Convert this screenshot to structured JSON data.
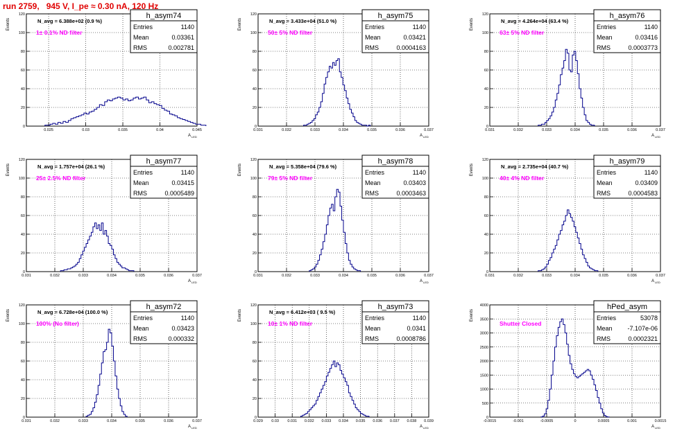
{
  "run_title": "run 2759,   945 V, I_pe ≈ 0.30 nA, 120 Hz",
  "colors": {
    "title": "#e00000",
    "hist": "#00008b",
    "annot": "#ff00ff",
    "axis": "#000000"
  },
  "common": {
    "ylabel": "Events",
    "xlabel": "A",
    "xlabel_sub": "LED",
    "stat_labels": [
      "Entries",
      "Mean",
      "RMS"
    ]
  },
  "chart_data": [
    {
      "type": "histogram",
      "name": "h_asym74",
      "navg": "N_avg = 6.388e+02 (0.9 %)",
      "annot": "1± 0.1% ND filter",
      "stats": {
        "entries": "1140",
        "mean": "0.03361",
        "rms": "0.002781"
      },
      "xlim": [
        0.022,
        0.045
      ],
      "xticks": [
        "0.025",
        "0.03",
        "0.035",
        "0.04",
        "0.045"
      ],
      "xtickv": [
        0.025,
        0.03,
        0.035,
        0.04,
        0.045
      ],
      "ylim": [
        0,
        120
      ],
      "yticks": [
        "0",
        "20",
        "40",
        "60",
        "80",
        "100",
        "120"
      ],
      "ytickv": [
        0,
        20,
        40,
        60,
        80,
        100,
        120
      ],
      "bin_start": 0.0245,
      "bin_width": 0.00035,
      "values": [
        1,
        1,
        2,
        3,
        2,
        4,
        3,
        5,
        4,
        6,
        8,
        9,
        10,
        11,
        12,
        14,
        13,
        15,
        16,
        18,
        20,
        23,
        22,
        26,
        28,
        27,
        29,
        30,
        31,
        30,
        28,
        29,
        27,
        28,
        30,
        31,
        29,
        30,
        31,
        28,
        25,
        26,
        24,
        23,
        22,
        19,
        17,
        16,
        13,
        12,
        11,
        9,
        8,
        7,
        6,
        5,
        4,
        3,
        2,
        2,
        1,
        1
      ]
    },
    {
      "type": "histogram",
      "name": "h_asym75",
      "navg": "N_avg = 3.433e+04 (51.0 %)",
      "annot": "50± 5% ND filter",
      "stats": {
        "entries": "1140",
        "mean": "0.03421",
        "rms": "0.0004163"
      },
      "xlim": [
        0.031,
        0.037
      ],
      "xticks": [
        "0.031",
        "0.032",
        "0.033",
        "0.034",
        "0.035",
        "0.036",
        "0.037"
      ],
      "xtickv": [
        0.031,
        0.032,
        0.033,
        0.034,
        0.035,
        0.036,
        0.037
      ],
      "ylim": [
        0,
        120
      ],
      "yticks": [
        "0",
        "20",
        "40",
        "60",
        "80",
        "100",
        "120"
      ],
      "ytickv": [
        0,
        20,
        40,
        60,
        80,
        100,
        120
      ],
      "bin_start": 0.0326,
      "bin_width": 6e-05,
      "values": [
        1,
        1,
        2,
        3,
        4,
        6,
        8,
        12,
        15,
        20,
        26,
        35,
        45,
        52,
        58,
        64,
        62,
        68,
        65,
        70,
        72,
        58,
        52,
        44,
        38,
        30,
        24,
        18,
        14,
        10,
        6,
        4,
        3,
        2,
        1,
        1,
        1,
        0,
        1
      ]
    },
    {
      "type": "histogram",
      "name": "h_asym76",
      "navg": "N_avg = 4.264e+04 (63.4 %)",
      "annot": "63± 5% ND filter",
      "stats": {
        "entries": "1140",
        "mean": "0.03416",
        "rms": "0.0003773"
      },
      "xlim": [
        0.031,
        0.037
      ],
      "xticks": [
        "0.031",
        "0.032",
        "0.033",
        "0.034",
        "0.035",
        "0.036",
        "0.037"
      ],
      "xtickv": [
        0.031,
        0.032,
        0.033,
        0.034,
        0.035,
        0.036,
        0.037
      ],
      "ylim": [
        0,
        120
      ],
      "yticks": [
        "0",
        "20",
        "40",
        "60",
        "80",
        "100",
        "120"
      ],
      "ytickv": [
        0,
        20,
        40,
        60,
        80,
        100,
        120
      ],
      "bin_start": 0.0327,
      "bin_width": 6e-05,
      "values": [
        1,
        1,
        2,
        2,
        4,
        6,
        8,
        11,
        15,
        20,
        28,
        35,
        44,
        55,
        62,
        70,
        82,
        78,
        60,
        58,
        76,
        80,
        70,
        56,
        40,
        30,
        20,
        12,
        6,
        4,
        2,
        1,
        1
      ]
    },
    {
      "type": "histogram",
      "name": "h_asym77",
      "navg": "N_avg = 1.757e+04 (26.1 %)",
      "annot": "25± 2.5% ND filter",
      "stats": {
        "entries": "1140",
        "mean": "0.03415",
        "rms": "0.0005489"
      },
      "xlim": [
        0.031,
        0.037
      ],
      "xticks": [
        "0.031",
        "0.032",
        "0.033",
        "0.034",
        "0.035",
        "0.036",
        "0.037"
      ],
      "xtickv": [
        0.031,
        0.032,
        0.033,
        0.034,
        0.035,
        0.036,
        0.037
      ],
      "ylim": [
        0,
        120
      ],
      "yticks": [
        "0",
        "20",
        "40",
        "60",
        "80",
        "100",
        "120"
      ],
      "ytickv": [
        0,
        20,
        40,
        60,
        80,
        100,
        120
      ],
      "bin_start": 0.0322,
      "bin_width": 6e-05,
      "values": [
        1,
        1,
        2,
        2,
        3,
        3,
        4,
        5,
        6,
        8,
        10,
        14,
        18,
        22,
        26,
        30,
        34,
        38,
        42,
        48,
        52,
        46,
        50,
        44,
        52,
        40,
        44,
        38,
        30,
        28,
        24,
        18,
        14,
        10,
        8,
        6,
        4,
        4,
        3,
        2,
        1,
        1,
        1
      ]
    },
    {
      "type": "histogram",
      "name": "h_asym78",
      "navg": "N_avg = 5.358e+04 (79.6 %)",
      "annot": "79± 5% ND filter",
      "stats": {
        "entries": "1140",
        "mean": "0.03403",
        "rms": "0.0003463"
      },
      "xlim": [
        0.031,
        0.037
      ],
      "xticks": [
        "0.031",
        "0.032",
        "0.033",
        "0.034",
        "0.035",
        "0.036",
        "0.037"
      ],
      "xtickv": [
        0.031,
        0.032,
        0.033,
        0.034,
        0.035,
        0.036,
        0.037
      ],
      "ylim": [
        0,
        120
      ],
      "yticks": [
        "0",
        "20",
        "40",
        "60",
        "80",
        "100",
        "120"
      ],
      "ytickv": [
        0,
        20,
        40,
        60,
        80,
        100,
        120
      ],
      "bin_start": 0.0328,
      "bin_width": 6e-05,
      "values": [
        1,
        2,
        3,
        5,
        8,
        12,
        18,
        24,
        32,
        40,
        50,
        60,
        68,
        72,
        65,
        80,
        88,
        85,
        70,
        55,
        42,
        30,
        20,
        12,
        8,
        5,
        3,
        2,
        1,
        1
      ]
    },
    {
      "type": "histogram",
      "name": "h_asym79",
      "navg": "N_avg = 2.735e+04 (40.7 %)",
      "annot": "40± 4% ND filter",
      "stats": {
        "entries": "1140",
        "mean": "0.03409",
        "rms": "0.0004583"
      },
      "xlim": [
        0.031,
        0.037
      ],
      "xticks": [
        "0.031",
        "0.032",
        "0.033",
        "0.034",
        "0.035",
        "0.036",
        "0.037"
      ],
      "xtickv": [
        0.031,
        0.032,
        0.033,
        0.034,
        0.035,
        0.036,
        0.037
      ],
      "ylim": [
        0,
        120
      ],
      "yticks": [
        "0",
        "20",
        "40",
        "60",
        "80",
        "100",
        "120"
      ],
      "ytickv": [
        0,
        20,
        40,
        60,
        80,
        100,
        120
      ],
      "bin_start": 0.0327,
      "bin_width": 6e-05,
      "values": [
        1,
        1,
        2,
        3,
        5,
        8,
        12,
        15,
        20,
        24,
        28,
        34,
        40,
        44,
        50,
        54,
        60,
        66,
        62,
        58,
        54,
        48,
        42,
        36,
        30,
        24,
        18,
        14,
        10,
        6,
        4,
        3,
        2,
        1,
        1
      ]
    },
    {
      "type": "histogram",
      "name": "h_asym72",
      "navg": "N_avg = 6.728e+04 (100.0 %)",
      "annot": "100% (No filter)",
      "stats": {
        "entries": "1140",
        "mean": "0.03423",
        "rms": "0.000332"
      },
      "xlim": [
        0.031,
        0.037
      ],
      "xticks": [
        "0.031",
        "0.032",
        "0.033",
        "0.034",
        "0.035",
        "0.036",
        "0.037"
      ],
      "xtickv": [
        0.031,
        0.032,
        0.033,
        0.034,
        0.035,
        0.036,
        0.037
      ],
      "ylim": [
        0,
        120
      ],
      "yticks": [
        "0",
        "20",
        "40",
        "60",
        "80",
        "100",
        "120"
      ],
      "ytickv": [
        0,
        20,
        40,
        60,
        80,
        100,
        120
      ],
      "bin_start": 0.0331,
      "bin_width": 6e-05,
      "values": [
        1,
        2,
        3,
        6,
        10,
        16,
        24,
        34,
        46,
        58,
        70,
        72,
        80,
        94,
        90,
        76,
        60,
        44,
        30,
        20,
        12,
        6,
        3,
        1
      ]
    },
    {
      "type": "histogram",
      "name": "h_asym73",
      "navg": "N_avg = 6.412e+03 ( 9.5 %)",
      "annot": "10± 1% ND filter",
      "stats": {
        "entries": "1140",
        "mean": "0.0341",
        "rms": "0.0008786"
      },
      "xlim": [
        0.029,
        0.039
      ],
      "xticks": [
        "0.029",
        "0.03",
        "0.031",
        "0.032",
        "0.033",
        "0.034",
        "0.035",
        "0.036",
        "0.037",
        "0.038",
        "0.039"
      ],
      "xtickv": [
        0.029,
        0.03,
        0.031,
        0.032,
        0.033,
        0.034,
        0.035,
        0.036,
        0.037,
        0.038,
        0.039
      ],
      "ylim": [
        0,
        120
      ],
      "yticks": [
        "0",
        "20",
        "40",
        "60",
        "80",
        "100",
        "120"
      ],
      "ytickv": [
        0,
        20,
        40,
        60,
        80,
        100,
        120
      ],
      "bin_start": 0.0315,
      "bin_width": 0.0001,
      "values": [
        1,
        2,
        3,
        4,
        6,
        8,
        10,
        12,
        14,
        18,
        22,
        26,
        30,
        34,
        38,
        44,
        48,
        52,
        56,
        60,
        54,
        58,
        56,
        50,
        46,
        42,
        38,
        34,
        26,
        22,
        18,
        14,
        10,
        8,
        6,
        4,
        3,
        2,
        1,
        1
      ]
    },
    {
      "type": "histogram",
      "name": "hPed_asym",
      "navg": "",
      "annot": "Shutter Closed",
      "stats": {
        "entries": "53078",
        "mean": "-7.107e-06",
        "rms": "0.0002321"
      },
      "xlim": [
        -0.0015,
        0.0015
      ],
      "xticks": [
        "-0.0015",
        "-0.001",
        "-0.0005",
        "0",
        "0.0005",
        "0.001",
        "0.0015"
      ],
      "xtickv": [
        -0.0015,
        -0.001,
        -0.0005,
        0,
        0.0005,
        0.001,
        0.0015
      ],
      "ylim": [
        0,
        4000
      ],
      "yticks": [
        "0",
        "500",
        "1000",
        "1500",
        "2000",
        "2500",
        "3000",
        "3500",
        "4000"
      ],
      "ytickv": [
        0,
        500,
        1000,
        1500,
        2000,
        2500,
        3000,
        3500,
        4000
      ],
      "bin_start": -0.0006,
      "bin_width": 3e-05,
      "values": [
        10,
        40,
        120,
        300,
        600,
        1000,
        1500,
        2000,
        2500,
        2900,
        3200,
        3400,
        3500,
        3300,
        3000,
        2600,
        2200,
        1900,
        1700,
        1550,
        1450,
        1400,
        1450,
        1500,
        1550,
        1600,
        1650,
        1700,
        1650,
        1500,
        1350,
        1150,
        950,
        700,
        500,
        300,
        150,
        60,
        20,
        5
      ]
    }
  ]
}
